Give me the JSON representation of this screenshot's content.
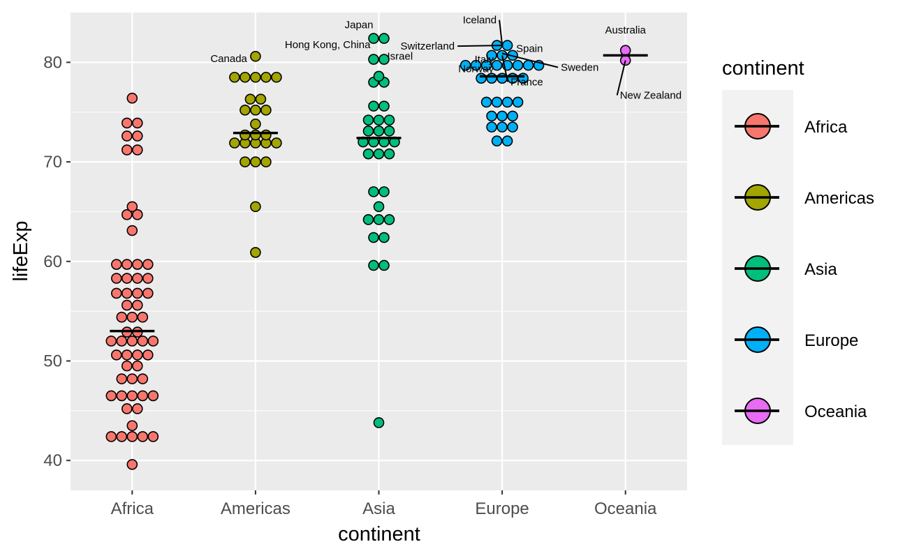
{
  "chart_data": {
    "type": "scatter",
    "subtype": "dotplot",
    "title": "",
    "xlabel": "continent",
    "ylabel": "lifeExp",
    "ylim": [
      37,
      85
    ],
    "yticks": [
      40,
      50,
      60,
      70,
      80
    ],
    "ytick_labels": [
      "40",
      "50",
      "60",
      "70",
      "80"
    ],
    "grid": true,
    "categories": [
      "Africa",
      "Americas",
      "Asia",
      "Europe",
      "Oceania"
    ],
    "colors": {
      "Africa": "#F8766D",
      "Americas": "#A3A500",
      "Asia": "#00BF7D",
      "Europe": "#00B0F6",
      "Oceania": "#E76BF3"
    },
    "legend": {
      "title": "continent",
      "position": "right",
      "entries": [
        "Africa",
        "Americas",
        "Asia",
        "Europe",
        "Oceania"
      ]
    },
    "series": [
      {
        "category": "Africa",
        "median": 53,
        "values": [
          39.6,
          42.4,
          42.4,
          42.4,
          42.4,
          42.4,
          43.5,
          45.2,
          45.2,
          46.5,
          46.5,
          46.5,
          46.5,
          46.5,
          48.2,
          48.2,
          48.2,
          49.5,
          49.5,
          50.6,
          50.6,
          50.6,
          50.6,
          52.0,
          52.0,
          52.0,
          52.0,
          52.0,
          52.9,
          52.9,
          54.4,
          54.4,
          54.4,
          55.6,
          55.6,
          56.8,
          56.8,
          56.8,
          56.8,
          58.3,
          58.3,
          58.3,
          58.3,
          59.7,
          59.7,
          59.7,
          59.7,
          63.1,
          64.7,
          64.7,
          65.5,
          71.2,
          71.2,
          72.6,
          72.6,
          73.9,
          73.9,
          76.4
        ]
      },
      {
        "category": "Americas",
        "median": 72.9,
        "values": [
          60.9,
          65.5,
          70.0,
          70.0,
          70.0,
          71.9,
          71.9,
          71.9,
          71.9,
          71.9,
          72.7,
          72.7,
          72.7,
          73.8,
          75.2,
          75.2,
          75.2,
          76.3,
          76.3,
          78.5,
          78.5,
          78.5,
          78.5,
          78.5,
          80.6
        ]
      },
      {
        "category": "Asia",
        "median": 72.4,
        "values": [
          43.8,
          59.6,
          59.6,
          62.4,
          62.4,
          64.2,
          64.2,
          64.2,
          65.5,
          67.0,
          67.0,
          70.8,
          70.8,
          70.8,
          72.0,
          72.0,
          72.0,
          72.0,
          73.1,
          73.1,
          73.1,
          74.2,
          74.2,
          74.2,
          75.6,
          75.6,
          78.0,
          78.0,
          78.6,
          80.3,
          80.3,
          82.4,
          82.4
        ]
      },
      {
        "category": "Europe",
        "median": 78.6,
        "values": [
          72.1,
          72.1,
          73.5,
          73.5,
          73.5,
          74.6,
          74.6,
          74.6,
          76.0,
          76.0,
          76.0,
          76.0,
          78.4,
          78.4,
          78.4,
          78.4,
          78.4,
          79.7,
          79.7,
          79.7,
          79.7,
          79.7,
          79.7,
          79.7,
          79.7,
          80.7,
          80.7,
          80.7,
          81.7,
          81.7
        ]
      },
      {
        "category": "Oceania",
        "median": 80.7,
        "values": [
          80.2,
          81.2
        ]
      }
    ],
    "annotations": [
      {
        "label": "Canada",
        "category": "Americas",
        "y": 80.6,
        "side": "left"
      },
      {
        "label": "Japan",
        "category": "Asia",
        "y": 82.6,
        "side": "left"
      },
      {
        "label": "Hong Kong, China",
        "category": "Asia",
        "y": 82.2,
        "side": "left"
      },
      {
        "label": "Israel",
        "category": "Asia",
        "y": 80.7,
        "side": "right"
      },
      {
        "label": "Iceland",
        "category": "Europe",
        "y": 81.8,
        "side": "left"
      },
      {
        "label": "Switzerland",
        "category": "Europe",
        "y": 81.7,
        "side": "left"
      },
      {
        "label": "Spain",
        "category": "Europe",
        "y": 80.9,
        "side": "right"
      },
      {
        "label": "Italy",
        "category": "Europe",
        "y": 80.5,
        "side": "left"
      },
      {
        "label": "Sweden",
        "category": "Europe",
        "y": 80.9,
        "side": "right"
      },
      {
        "label": "Norway",
        "category": "Europe",
        "y": 80.2,
        "side": "left"
      },
      {
        "label": "France",
        "category": "Europe",
        "y": 80.7,
        "side": "right"
      },
      {
        "label": "Australia",
        "category": "Oceania",
        "y": 81.2,
        "side": "left"
      },
      {
        "label": "New Zealand",
        "category": "Oceania",
        "y": 80.2,
        "side": "right"
      }
    ]
  }
}
